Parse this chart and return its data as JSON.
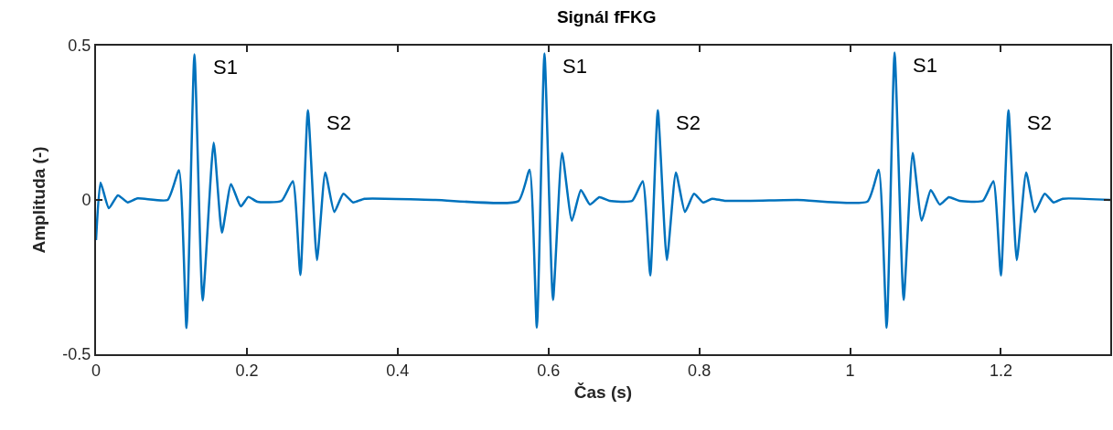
{
  "chart_data": {
    "type": "line",
    "title": "Signál fFKG",
    "xlabel": "Čas (s)",
    "ylabel": "Amplituda (-)",
    "x": [
      0,
      0.006,
      0.017,
      0.029,
      0.042,
      0.055,
      0.095,
      0.11,
      0.12,
      0.1305,
      0.1414,
      0.156,
      0.167,
      0.179,
      0.192,
      0.202,
      0.214,
      0.246,
      0.261,
      0.271,
      0.281,
      0.293,
      0.304,
      0.316,
      0.328,
      0.341,
      0.356,
      0.45,
      0.56,
      0.575,
      0.5846,
      0.5947,
      0.606,
      0.618,
      0.631,
      0.643,
      0.655,
      0.6675,
      0.681,
      0.711,
      0.725,
      0.735,
      0.745,
      0.757,
      0.769,
      0.781,
      0.793,
      0.805,
      0.817,
      0.834,
      0.93,
      1.023,
      1.038,
      1.0485,
      1.059,
      1.071,
      1.083,
      1.095,
      1.107,
      1.119,
      1.131,
      1.145,
      1.176,
      1.19,
      1.2,
      1.21,
      1.221,
      1.2335,
      1.245,
      1.258,
      1.27,
      1.282,
      1.345
    ],
    "series": [
      {
        "color": "#0072bd",
        "values": [
          -0.13,
          0.056,
          -0.027,
          0.015,
          -0.008,
          0.005,
          0,
          0.096,
          -0.415,
          0.472,
          -0.326,
          0.186,
          -0.106,
          0.051,
          -0.021,
          0.01,
          -0.006,
          -0.003,
          0.061,
          -0.243,
          0.291,
          -0.195,
          0.089,
          -0.039,
          0.02,
          -0.008,
          0.004,
          0,
          -0.004,
          0.098,
          -0.414,
          0.475,
          -0.324,
          0.152,
          -0.067,
          0.032,
          -0.015,
          0.009,
          -0.003,
          -0.003,
          0.061,
          -0.245,
          0.291,
          -0.195,
          0.089,
          -0.039,
          0.02,
          -0.008,
          0.004,
          -0.003,
          0,
          -0.005,
          0.098,
          -0.414,
          0.478,
          -0.324,
          0.152,
          -0.067,
          0.032,
          -0.015,
          0.009,
          -0.003,
          -0.003,
          0.061,
          -0.245,
          0.291,
          -0.195,
          0.089,
          -0.039,
          0.02,
          -0.008,
          0.004,
          0
        ]
      }
    ],
    "xlim": [
      0,
      1.345
    ],
    "xticks": [
      0,
      0.2,
      0.4,
      0.6,
      0.8,
      1,
      1.2
    ],
    "ylim": [
      -0.5,
      0.5
    ],
    "yticks": [
      -0.5,
      0,
      0.5
    ],
    "marker": "none",
    "line_style": "solid",
    "annotations": [
      {
        "text": "S1",
        "x": 0.1305,
        "y": 0.472
      },
      {
        "text": "S2",
        "x": 0.281,
        "y": 0.291
      },
      {
        "text": "S1",
        "x": 0.5947,
        "y": 0.475
      },
      {
        "text": "S2",
        "x": 0.745,
        "y": 0.291
      },
      {
        "text": "S1",
        "x": 1.059,
        "y": 0.478
      },
      {
        "text": "S2",
        "x": 1.21,
        "y": 0.291
      }
    ]
  }
}
